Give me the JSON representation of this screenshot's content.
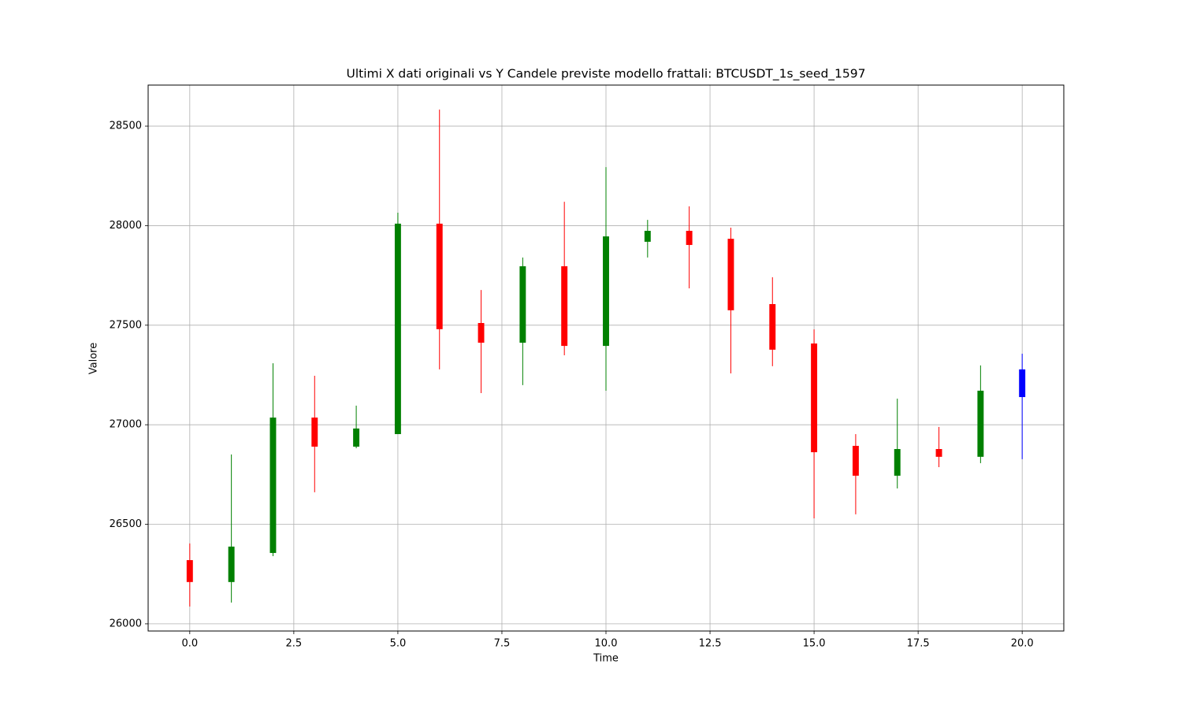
{
  "chart_data": {
    "type": "candlestick",
    "title": "Ultimi X dati originali vs Y Candele previste modello frattali: BTCUSDT_1s_seed_1597",
    "xlabel": "Time",
    "ylabel": "Valore",
    "x": [
      0,
      1,
      2,
      3,
      4,
      5,
      6,
      7,
      8,
      9,
      10,
      11,
      12,
      13,
      14,
      15,
      16,
      17,
      18,
      19,
      20
    ],
    "open": [
      26320,
      26210,
      26356,
      27036,
      26890,
      26953,
      28010,
      27511,
      27412,
      27796,
      27396,
      27919,
      27974,
      27934,
      27606,
      27408,
      26894,
      26744,
      26878,
      26839,
      27139
    ],
    "high": [
      26404,
      26851,
      27309,
      27246,
      27096,
      28065,
      28583,
      27677,
      27840,
      28120,
      28294,
      28029,
      28097,
      27990,
      27741,
      27479,
      26953,
      27131,
      26989,
      27298,
      27357
    ],
    "low": [
      26087,
      26107,
      26340,
      26661,
      26882,
      26953,
      27278,
      27159,
      27199,
      27349,
      27171,
      27840,
      27685,
      27258,
      27294,
      26530,
      26550,
      26680,
      26787,
      26807,
      26827
    ],
    "close": [
      26210,
      26388,
      27036,
      26890,
      26981,
      28010,
      27480,
      27412,
      27796,
      27396,
      27946,
      27974,
      27903,
      27575,
      27377,
      26862,
      26744,
      26878,
      26839,
      27171,
      27278
    ],
    "colors": [
      "red",
      "green",
      "green",
      "red",
      "green",
      "green",
      "red",
      "red",
      "green",
      "red",
      "green",
      "green",
      "red",
      "red",
      "red",
      "red",
      "red",
      "green",
      "red",
      "green",
      "blue"
    ],
    "xlim": [
      -1,
      21
    ],
    "xticks": [
      {
        "value": 0,
        "label": "0.0"
      },
      {
        "value": 2.5,
        "label": "2.5"
      },
      {
        "value": 5,
        "label": "5.0"
      },
      {
        "value": 7.5,
        "label": "7.5"
      },
      {
        "value": 10,
        "label": "10.0"
      },
      {
        "value": 12.5,
        "label": "12.5"
      },
      {
        "value": 15,
        "label": "15.0"
      },
      {
        "value": 17.5,
        "label": "17.5"
      },
      {
        "value": 20,
        "label": "20.0"
      }
    ],
    "ylim": [
      25964,
      28706
    ],
    "yticks": [
      26000,
      26500,
      27000,
      27500,
      28000,
      28500
    ],
    "grid": true
  }
}
